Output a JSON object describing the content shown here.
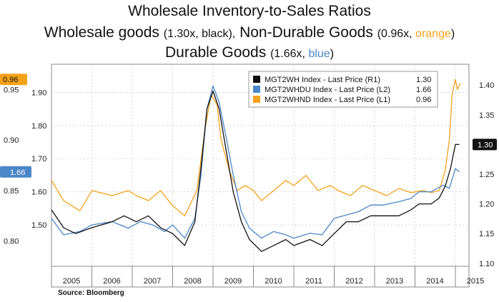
{
  "title": {
    "line1": "Wholesale Inventory-to-Sales Ratios",
    "line2_main_a": "Wholesale goods",
    "line2_paren_a_pre": "(1.30x, ",
    "line2_paren_a_word": "black",
    "line2_paren_a_post": "),",
    "line2_main_b": "Non-Durable Goods",
    "line2_paren_b_pre": "(0.96x, ",
    "line2_paren_b_word": "orange",
    "line2_paren_b_post": ")",
    "line3_main": "Durable Goods",
    "line3_paren_pre": "(1.66x, ",
    "line3_paren_word": "blue",
    "line3_paren_post": ")"
  },
  "source": "Source:  Bloomberg",
  "colors": {
    "black": "#111111",
    "blue": "#4a86c8",
    "orange": "#f5a21b",
    "grid": "#c9c9c9"
  },
  "chart_data": {
    "type": "line",
    "x_tick_labels": [
      "2005",
      "2006",
      "2007",
      "2008",
      "2009",
      "2010",
      "2011",
      "2012",
      "2013",
      "2014",
      "2015"
    ],
    "axes": {
      "left_outer": {
        "ylim": [
          0.775,
          0.975
        ],
        "ticks": [
          "0.80",
          "0.85",
          "0.90",
          "0.95"
        ],
        "marker": "0.96",
        "marker_value": 0.96
      },
      "left_inner": {
        "ylim": [
          1.375,
          1.985
        ],
        "ticks": [
          "1.50",
          "1.60",
          "1.70",
          "1.80",
          "1.90"
        ],
        "marker": "1.66",
        "marker_value": 1.66
      },
      "right": {
        "ylim": [
          1.095,
          1.435
        ],
        "ticks": [
          "1.10",
          "1.15",
          "1.20",
          "1.25",
          "1.30",
          "1.35",
          "1.40"
        ],
        "marker": "1.30",
        "marker_value": 1.3
      }
    },
    "legend": {
      "position": "top-right",
      "entries": [
        {
          "name": "MGT2WH Index - Last Price (R1)",
          "value": "1.30",
          "color": "#111111"
        },
        {
          "name": "MGT2WHDU Index - Last Price (L2)",
          "value": "1.66",
          "color": "#4a86c8"
        },
        {
          "name": "MGT2WHND Index - Last Price (L1)",
          "value": "0.96",
          "color": "#f5a21b"
        }
      ]
    },
    "series": [
      {
        "name": "MGT2WHND Index",
        "axis": "left_outer",
        "color": "#f5a21b",
        "points": [
          [
            2005.0,
            0.86
          ],
          [
            2005.3,
            0.84
          ],
          [
            2005.7,
            0.83
          ],
          [
            2006.0,
            0.85
          ],
          [
            2006.5,
            0.845
          ],
          [
            2006.9,
            0.85
          ],
          [
            2007.1,
            0.845
          ],
          [
            2007.4,
            0.84
          ],
          [
            2007.7,
            0.85
          ],
          [
            2008.0,
            0.835
          ],
          [
            2008.3,
            0.825
          ],
          [
            2008.6,
            0.85
          ],
          [
            2008.8,
            0.91
          ],
          [
            2008.95,
            0.945
          ],
          [
            2009.1,
            0.935
          ],
          [
            2009.2,
            0.9
          ],
          [
            2009.4,
            0.87
          ],
          [
            2009.6,
            0.85
          ],
          [
            2009.8,
            0.855
          ],
          [
            2010.0,
            0.85
          ],
          [
            2010.2,
            0.84
          ],
          [
            2010.5,
            0.85
          ],
          [
            2010.8,
            0.86
          ],
          [
            2011.0,
            0.855
          ],
          [
            2011.3,
            0.865
          ],
          [
            2011.6,
            0.85
          ],
          [
            2011.9,
            0.855
          ],
          [
            2012.1,
            0.85
          ],
          [
            2012.4,
            0.845
          ],
          [
            2012.7,
            0.855
          ],
          [
            2013.0,
            0.85
          ],
          [
            2013.3,
            0.845
          ],
          [
            2013.6,
            0.852
          ],
          [
            2013.9,
            0.848
          ],
          [
            2014.2,
            0.85
          ],
          [
            2014.4,
            0.848
          ],
          [
            2014.6,
            0.85
          ],
          [
            2014.75,
            0.87
          ],
          [
            2014.85,
            0.9
          ],
          [
            2014.92,
            0.945
          ],
          [
            2015.0,
            0.96
          ],
          [
            2015.05,
            0.95
          ],
          [
            2015.12,
            0.956
          ]
        ]
      },
      {
        "name": "MGT2WHDU Index",
        "axis": "left_inner",
        "color": "#4a86c8",
        "points": [
          [
            2005.0,
            1.52
          ],
          [
            2005.3,
            1.47
          ],
          [
            2005.7,
            1.48
          ],
          [
            2006.0,
            1.5
          ],
          [
            2006.5,
            1.51
          ],
          [
            2006.9,
            1.49
          ],
          [
            2007.2,
            1.51
          ],
          [
            2007.5,
            1.5
          ],
          [
            2007.8,
            1.48
          ],
          [
            2008.0,
            1.5
          ],
          [
            2008.3,
            1.46
          ],
          [
            2008.55,
            1.52
          ],
          [
            2008.7,
            1.65
          ],
          [
            2008.85,
            1.85
          ],
          [
            2009.0,
            1.92
          ],
          [
            2009.15,
            1.87
          ],
          [
            2009.3,
            1.78
          ],
          [
            2009.5,
            1.65
          ],
          [
            2009.7,
            1.54
          ],
          [
            2009.9,
            1.49
          ],
          [
            2010.2,
            1.46
          ],
          [
            2010.5,
            1.48
          ],
          [
            2010.8,
            1.47
          ],
          [
            2011.0,
            1.46
          ],
          [
            2011.4,
            1.475
          ],
          [
            2011.7,
            1.47
          ],
          [
            2012.0,
            1.52
          ],
          [
            2012.3,
            1.53
          ],
          [
            2012.6,
            1.54
          ],
          [
            2012.9,
            1.56
          ],
          [
            2013.2,
            1.56
          ],
          [
            2013.6,
            1.57
          ],
          [
            2013.9,
            1.58
          ],
          [
            2014.1,
            1.6
          ],
          [
            2014.4,
            1.6
          ],
          [
            2014.7,
            1.62
          ],
          [
            2014.85,
            1.61
          ],
          [
            2015.0,
            1.67
          ],
          [
            2015.1,
            1.66
          ]
        ]
      },
      {
        "name": "MGT2WH Index",
        "axis": "right",
        "color": "#111111",
        "points": [
          [
            2005.0,
            1.19
          ],
          [
            2005.3,
            1.16
          ],
          [
            2005.6,
            1.15
          ],
          [
            2006.0,
            1.16
          ],
          [
            2006.5,
            1.17
          ],
          [
            2006.8,
            1.18
          ],
          [
            2007.1,
            1.17
          ],
          [
            2007.4,
            1.18
          ],
          [
            2007.7,
            1.16
          ],
          [
            2008.0,
            1.15
          ],
          [
            2008.3,
            1.13
          ],
          [
            2008.55,
            1.17
          ],
          [
            2008.7,
            1.26
          ],
          [
            2008.85,
            1.36
          ],
          [
            2009.0,
            1.39
          ],
          [
            2009.15,
            1.36
          ],
          [
            2009.3,
            1.3
          ],
          [
            2009.5,
            1.22
          ],
          [
            2009.7,
            1.17
          ],
          [
            2009.9,
            1.14
          ],
          [
            2010.2,
            1.12
          ],
          [
            2010.5,
            1.13
          ],
          [
            2010.8,
            1.14
          ],
          [
            2011.0,
            1.13
          ],
          [
            2011.4,
            1.14
          ],
          [
            2011.7,
            1.13
          ],
          [
            2012.0,
            1.15
          ],
          [
            2012.3,
            1.17
          ],
          [
            2012.6,
            1.17
          ],
          [
            2012.9,
            1.18
          ],
          [
            2013.2,
            1.18
          ],
          [
            2013.6,
            1.18
          ],
          [
            2013.9,
            1.19
          ],
          [
            2014.1,
            1.2
          ],
          [
            2014.4,
            1.2
          ],
          [
            2014.6,
            1.21
          ],
          [
            2014.75,
            1.23
          ],
          [
            2014.88,
            1.26
          ],
          [
            2015.0,
            1.3
          ],
          [
            2015.1,
            1.3
          ]
        ]
      }
    ]
  }
}
